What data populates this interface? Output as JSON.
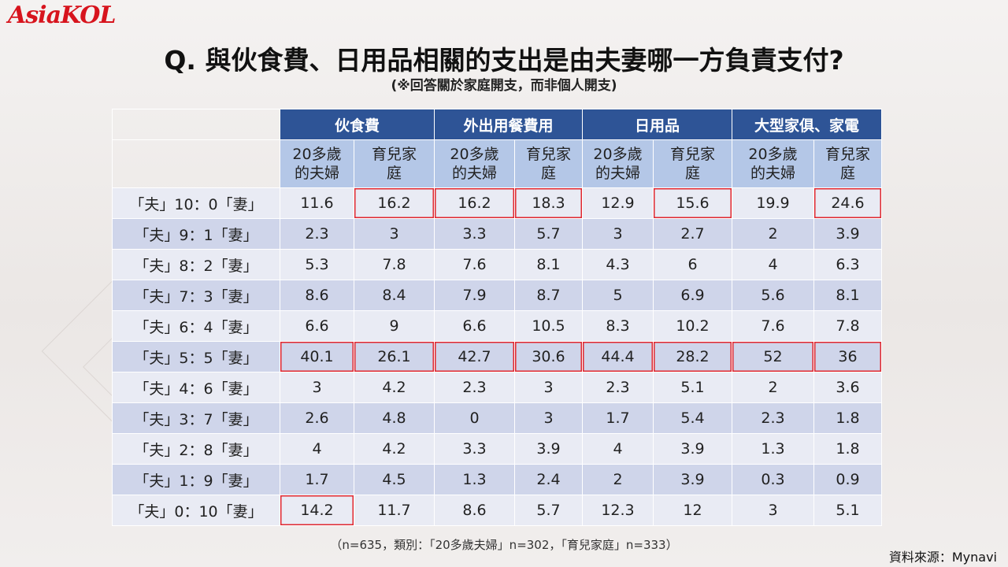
{
  "logo": "AsiaKOL",
  "title": "Q. 與伙食費、日用品相關的支出是由夫妻哪一方負責支付?",
  "subtitle": "(※回答關於家庭開支，而非個人開支)",
  "table": {
    "groups": [
      "伙食費",
      "外出用餐費用",
      "日用品",
      "大型家俱、家電"
    ],
    "subheaders": [
      [
        "20多歲",
        "的夫婦"
      ],
      [
        "育兒家",
        "庭"
      ],
      [
        "20多歲",
        "的夫婦"
      ],
      [
        "育兒家",
        "庭"
      ],
      [
        "20多歲",
        "的夫婦"
      ],
      [
        "育兒家",
        "庭"
      ],
      [
        "20多歲",
        "的夫婦"
      ],
      [
        "育兒家",
        "庭"
      ]
    ],
    "rows": [
      {
        "label": "「夫」10：0「妻」",
        "values": [
          "11.6",
          "16.2",
          "16.2",
          "18.3",
          "12.9",
          "15.6",
          "19.9",
          "24.6"
        ],
        "highlight": [
          1,
          2,
          3,
          5,
          7
        ]
      },
      {
        "label": "「夫」9：1「妻」",
        "values": [
          "2.3",
          "3",
          "3.3",
          "5.7",
          "3",
          "2.7",
          "2",
          "3.9"
        ],
        "highlight": []
      },
      {
        "label": "「夫」8：2「妻」",
        "values": [
          "5.3",
          "7.8",
          "7.6",
          "8.1",
          "4.3",
          "6",
          "4",
          "6.3"
        ],
        "highlight": []
      },
      {
        "label": "「夫」7：3「妻」",
        "values": [
          "8.6",
          "8.4",
          "7.9",
          "8.7",
          "5",
          "6.9",
          "5.6",
          "8.1"
        ],
        "highlight": []
      },
      {
        "label": "「夫」6：4「妻」",
        "values": [
          "6.6",
          "9",
          "6.6",
          "10.5",
          "8.3",
          "10.2",
          "7.6",
          "7.8"
        ],
        "highlight": []
      },
      {
        "label": "「夫」5：5「妻」",
        "values": [
          "40.1",
          "26.1",
          "42.7",
          "30.6",
          "44.4",
          "28.2",
          "52",
          "36"
        ],
        "highlight": [
          0,
          1,
          2,
          3,
          4,
          5,
          6,
          7
        ]
      },
      {
        "label": "「夫」4：6「妻」",
        "values": [
          "3",
          "4.2",
          "2.3",
          "3",
          "2.3",
          "5.1",
          "2",
          "3.6"
        ],
        "highlight": []
      },
      {
        "label": "「夫」3：7「妻」",
        "values": [
          "2.6",
          "4.8",
          "0",
          "3",
          "1.7",
          "5.4",
          "2.3",
          "1.8"
        ],
        "highlight": []
      },
      {
        "label": "「夫」2：8「妻」",
        "values": [
          "4",
          "4.2",
          "3.3",
          "3.9",
          "4",
          "3.9",
          "1.3",
          "1.8"
        ],
        "highlight": []
      },
      {
        "label": "「夫」1：9「妻」",
        "values": [
          "1.7",
          "4.5",
          "1.3",
          "2.4",
          "2",
          "3.9",
          "0.3",
          "0.9"
        ],
        "highlight": []
      },
      {
        "label": "「夫」0：10「妻」",
        "values": [
          "14.2",
          "11.7",
          "8.6",
          "5.7",
          "12.3",
          "12",
          "3",
          "5.1"
        ],
        "highlight": [
          0
        ]
      }
    ],
    "highlight_color": "#e0272f"
  },
  "note": "（n=635，類別：「20多歲夫婦」n=302，「育兒家庭」n=333）",
  "source": "資料來源：Mynavi"
}
